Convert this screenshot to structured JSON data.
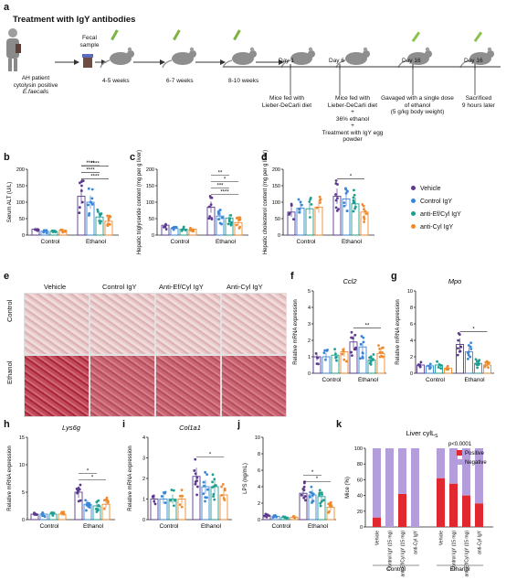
{
  "panel_a": {
    "letter": "a",
    "title": "Treatment with IgY antibodies",
    "patient_lines": [
      "AH patient",
      "cytolysin positive",
      "E.faecalis"
    ],
    "fecal_lines": [
      "Fecal",
      "sample"
    ],
    "ages": [
      "4-5 weeks",
      "6-7 weeks",
      "8-10 weeks"
    ],
    "days": [
      "Day 1",
      "Day 6",
      "Day 16",
      "Day 16"
    ],
    "desc1": [
      "Mice fed with",
      "Lieber-DeCarli diet"
    ],
    "desc2": [
      "Mice fed with",
      "Lieber-DeCarli diet",
      "+",
      "36% ethanol",
      "+",
      "Treatment with IgY egg",
      "powder"
    ],
    "desc3": [
      "Gavaged with a single dose",
      "of ethanol",
      "(5 g/kg body weight)"
    ],
    "desc4": [
      "Sacrificed",
      "9 hours later"
    ]
  },
  "legend": {
    "items": [
      {
        "label": "Vehicle",
        "color": "#5b3a8e"
      },
      {
        "label": "Control IgY",
        "color": "#3a86d6"
      },
      {
        "label": "anti-Ef/Cyl IgY",
        "color": "#1f9e8f"
      },
      {
        "label": "anti-Cyl IgY",
        "color": "#f08a2e"
      }
    ]
  },
  "panel_e": {
    "letter": "e",
    "cols": [
      "Vehicle",
      "Control IgY",
      "Anti-Ef/Cyl IgY",
      "Anti-Cyl IgY"
    ],
    "rows": [
      "Control",
      "Ethanol"
    ]
  },
  "chart_data": [
    {
      "id": "b",
      "type": "bar",
      "title": "",
      "ylabel": "Serum ALT (U/L)",
      "ylim": [
        0,
        200
      ],
      "yticks": [
        "0",
        "50",
        "100",
        "150",
        "200"
      ],
      "categories": [
        "Control",
        "Ethanol"
      ],
      "sig": [
        "****",
        "****",
        "****",
        "****"
      ],
      "series": [
        {
          "name": "Vehicle",
          "values": [
            18,
            118
          ]
        },
        {
          "name": "Control IgY",
          "values": [
            12,
            100
          ]
        },
        {
          "name": "anti-Ef/Cyl IgY",
          "values": [
            11,
            55
          ]
        },
        {
          "name": "anti-Cyl IgY",
          "values": [
            15,
            42
          ]
        }
      ]
    },
    {
      "id": "c",
      "type": "bar",
      "title": "",
      "ylabel": "Hepatic triglyceride content (mg per g liver)",
      "ylim": [
        0,
        200
      ],
      "yticks": [
        "0",
        "50",
        "100",
        "150",
        "200"
      ],
      "categories": [
        "Control",
        "Ethanol"
      ],
      "sig": [
        "****",
        "***",
        "*",
        "**"
      ],
      "series": [
        {
          "name": "Vehicle",
          "values": [
            30,
            85
          ]
        },
        {
          "name": "Control IgY",
          "values": [
            20,
            58
          ]
        },
        {
          "name": "anti-Ef/Cyl IgY",
          "values": [
            18,
            52
          ]
        },
        {
          "name": "anti-Cyl IgY",
          "values": [
            18,
            38
          ]
        }
      ]
    },
    {
      "id": "d",
      "type": "bar",
      "title": "",
      "ylabel": "Hepatic cholesterol content (mg per g liver)",
      "ylim": [
        0,
        200
      ],
      "yticks": [
        "0",
        "50",
        "100",
        "150",
        "200"
      ],
      "categories": [
        "Control",
        "Ethanol"
      ],
      "sig": [
        "*"
      ],
      "series": [
        {
          "name": "Vehicle",
          "values": [
            70,
            118
          ]
        },
        {
          "name": "Control IgY",
          "values": [
            82,
            110
          ]
        },
        {
          "name": "anti-Ef/Cyl IgY",
          "values": [
            80,
            95
          ]
        },
        {
          "name": "anti-Cyl IgY",
          "values": [
            85,
            70
          ]
        }
      ]
    },
    {
      "id": "f",
      "type": "bar",
      "title": "Ccl2",
      "ylabel": "Relative mRNA expression",
      "ylim": [
        0,
        5
      ],
      "yticks": [
        "0",
        "1",
        "2",
        "3",
        "4",
        "5"
      ],
      "categories": [
        "Control",
        "Ethanol"
      ],
      "sig": [
        "**"
      ],
      "series": [
        {
          "name": "Vehicle",
          "values": [
            1.0,
            1.9
          ]
        },
        {
          "name": "Control IgY",
          "values": [
            1.0,
            1.6
          ]
        },
        {
          "name": "anti-Ef/Cyl IgY",
          "values": [
            1.1,
            0.8
          ]
        },
        {
          "name": "anti-Cyl IgY",
          "values": [
            1.3,
            1.2
          ]
        }
      ]
    },
    {
      "id": "g",
      "type": "bar",
      "title": "Mpo",
      "ylabel": "Relative mRNA expression",
      "ylim": [
        0,
        10
      ],
      "yticks": [
        "0",
        "2",
        "4",
        "6",
        "8",
        "10"
      ],
      "categories": [
        "Control",
        "Ethanol"
      ],
      "sig": [
        "*"
      ],
      "series": [
        {
          "name": "Vehicle",
          "values": [
            1.0,
            3.5
          ]
        },
        {
          "name": "Control IgY",
          "values": [
            0.9,
            2.6
          ]
        },
        {
          "name": "anti-Ef/Cyl IgY",
          "values": [
            1.0,
            1.2
          ]
        },
        {
          "name": "anti-Cyl IgY",
          "values": [
            0.6,
            1.0
          ]
        }
      ]
    },
    {
      "id": "h",
      "type": "bar",
      "title": "Lys6g",
      "ylabel": "Relative mRNA expression",
      "ylim": [
        0,
        15
      ],
      "yticks": [
        "0",
        "5",
        "10",
        "15"
      ],
      "categories": [
        "Control",
        "Ethanol"
      ],
      "sig": [
        "*",
        "*"
      ],
      "series": [
        {
          "name": "Vehicle",
          "values": [
            1.0,
            5.0
          ]
        },
        {
          "name": "Control IgY",
          "values": [
            1.0,
            2.8
          ]
        },
        {
          "name": "anti-Ef/Cyl IgY",
          "values": [
            1.0,
            2.5
          ]
        },
        {
          "name": "anti-Cyl IgY",
          "values": [
            1.0,
            2.8
          ]
        }
      ]
    },
    {
      "id": "i",
      "type": "bar",
      "title": "Col1a1",
      "ylabel": "Relative mRNA expression",
      "ylim": [
        0,
        4
      ],
      "yticks": [
        "0",
        "1",
        "2",
        "3",
        "4"
      ],
      "categories": [
        "Control",
        "Ethanol"
      ],
      "sig": [
        "*"
      ],
      "series": [
        {
          "name": "Vehicle",
          "values": [
            1.0,
            2.1
          ]
        },
        {
          "name": "Control IgY",
          "values": [
            1.0,
            1.6
          ]
        },
        {
          "name": "anti-Ef/Cyl IgY",
          "values": [
            1.0,
            1.6
          ]
        },
        {
          "name": "anti-Cyl IgY",
          "values": [
            1.0,
            1.2
          ]
        }
      ]
    },
    {
      "id": "j",
      "type": "bar",
      "title": "",
      "ylabel": "LPS (ng/mL)",
      "ylim": [
        0,
        10
      ],
      "yticks": [
        "0",
        "2",
        "4",
        "6",
        "8",
        "10"
      ],
      "categories": [
        "Control",
        "Ethanol"
      ],
      "sig": [
        "*",
        "*"
      ],
      "series": [
        {
          "name": "Vehicle",
          "values": [
            0.5,
            3.2
          ]
        },
        {
          "name": "Control IgY",
          "values": [
            0.4,
            3.0
          ]
        },
        {
          "name": "anti-Ef/Cyl IgY",
          "values": [
            0.3,
            2.8
          ]
        },
        {
          "name": "anti-Cyl IgY",
          "values": [
            0.3,
            1.5
          ]
        }
      ]
    },
    {
      "id": "k",
      "type": "bar",
      "title": "Liver cylLS",
      "ylabel": "Mice (%)",
      "ylim": [
        0,
        100
      ],
      "yticks": [
        "0",
        "20",
        "40",
        "60",
        "80",
        "100"
      ],
      "categories": [
        "Vehicle",
        "Control IgY (15 mg)",
        "anti-Ef/Cyl IgY (15 mg)",
        "anti-Cyl IgY",
        "Vehicle",
        "Control IgY (15 mg)",
        "anti-Ef/Cyl IgY (15 mg)",
        "anti-Cyl IgY"
      ],
      "groups": [
        "Control",
        "Ethanol"
      ],
      "pvalue": "p<0.0001",
      "series": [
        {
          "name": "Positive",
          "values": [
            12,
            0,
            42,
            0,
            62,
            55,
            40,
            30
          ]
        },
        {
          "name": "Negative",
          "values": [
            88,
            100,
            58,
            100,
            38,
            45,
            60,
            70
          ]
        }
      ]
    }
  ],
  "panel_letters": {
    "b": "b",
    "c": "c",
    "d": "d",
    "f": "f",
    "g": "g",
    "h": "h",
    "i": "i",
    "j": "j",
    "k": "k"
  },
  "k_legend": {
    "positive": "Positive",
    "negative": "Negative",
    "pos_color": "#e0282e",
    "neg_color": "#b39ddb"
  },
  "k_sub": "S"
}
